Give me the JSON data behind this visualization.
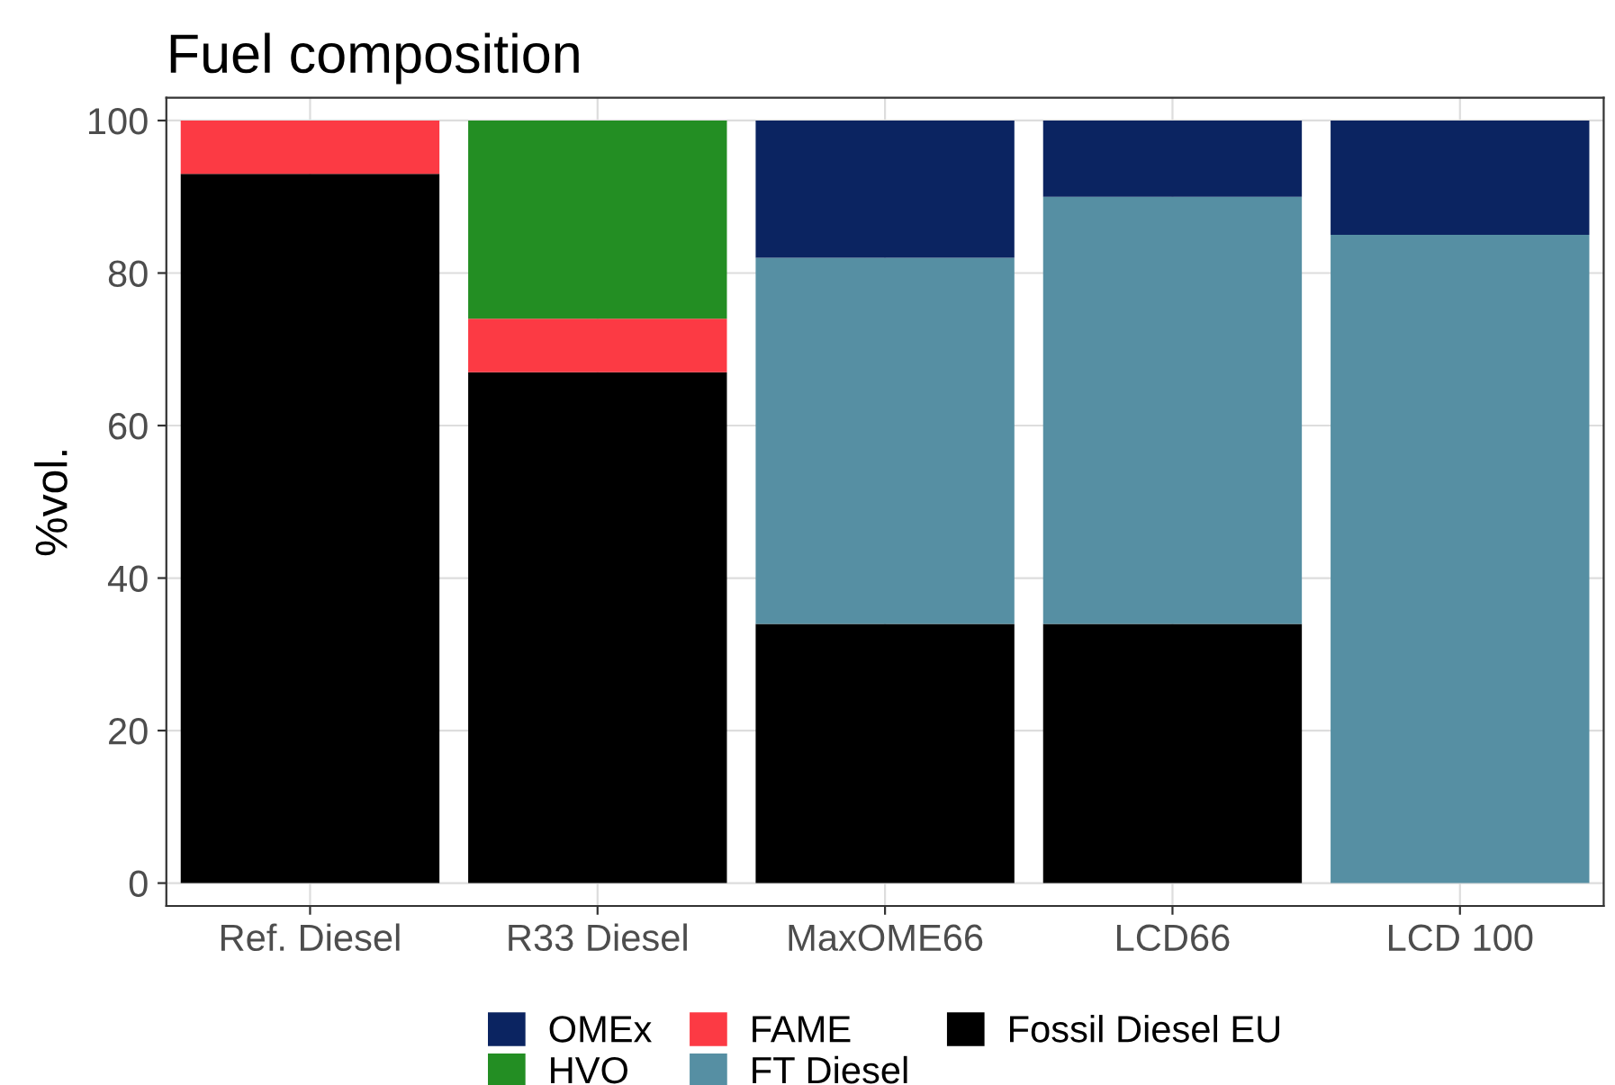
{
  "chart_data": {
    "type": "bar",
    "title": "Fuel composition",
    "ylabel": "%vol.",
    "categories": [
      "Ref. Diesel",
      "R33 Diesel",
      "MaxOME66",
      "LCD66",
      "LCD 100"
    ],
    "stacked": true,
    "series": [
      {
        "name": "Fossil Diesel EU",
        "color": "#000000",
        "values": [
          93,
          67,
          34,
          34,
          0
        ]
      },
      {
        "name": "FT Diesel",
        "color": "#568fa3",
        "values": [
          0,
          0,
          48,
          56,
          85
        ]
      },
      {
        "name": "FAME",
        "color": "#fc3a44",
        "values": [
          7,
          7,
          0,
          0,
          0
        ]
      },
      {
        "name": "HVO",
        "color": "#238e23",
        "values": [
          0,
          26,
          0,
          0,
          0
        ]
      },
      {
        "name": "OMEx",
        "color": "#0b2461",
        "values": [
          0,
          0,
          18,
          10,
          15
        ]
      }
    ],
    "ylim": [
      -3,
      103
    ],
    "yticks": [
      0,
      20,
      40,
      60,
      80,
      100
    ],
    "grid": true,
    "legend": "bottom"
  }
}
